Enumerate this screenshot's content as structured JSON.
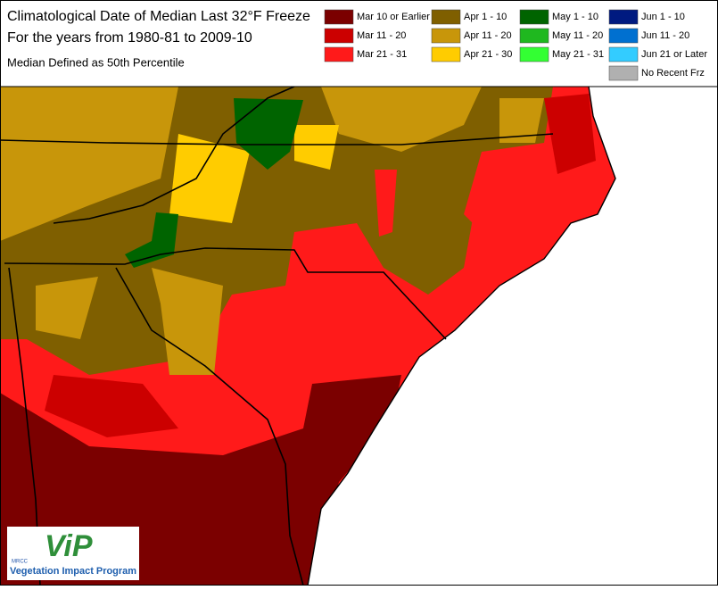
{
  "header": {
    "title_lines": [
      "Climatological Date of Median Last 32°F Freeze",
      "For the years from 1980-81 to 2009-10"
    ],
    "subtitle": "Median Defined as 50th Percentile"
  },
  "legend": {
    "items": [
      {
        "label": "Mar 10 or Earlier",
        "color": "#7b0000"
      },
      {
        "label": "Mar 11 - 20",
        "color": "#cc0000"
      },
      {
        "label": "Mar 21 - 31",
        "color": "#ff1a1a"
      },
      {
        "label": "Apr 1 - 10",
        "color": "#7f5f00"
      },
      {
        "label": "Apr 11 - 20",
        "color": "#c8960a"
      },
      {
        "label": "Apr 21 - 30",
        "color": "#ffcc00"
      },
      {
        "label": "May 1 - 10",
        "color": "#006400"
      },
      {
        "label": "May 11 - 20",
        "color": "#1fb81f"
      },
      {
        "label": "May 21 - 31",
        "color": "#33ff33"
      },
      {
        "label": "Jun 1 - 10",
        "color": "#001a80"
      },
      {
        "label": "Jun 11 - 20",
        "color": "#0070d0"
      },
      {
        "label": "Jun 21 or Later",
        "color": "#33ccff"
      },
      {
        "label": "No Recent Frz",
        "color": "#b0b0b0"
      }
    ]
  },
  "logo": {
    "mark": "ViP",
    "small": "MRCC",
    "text": "Vegetation Impact Program"
  }
}
